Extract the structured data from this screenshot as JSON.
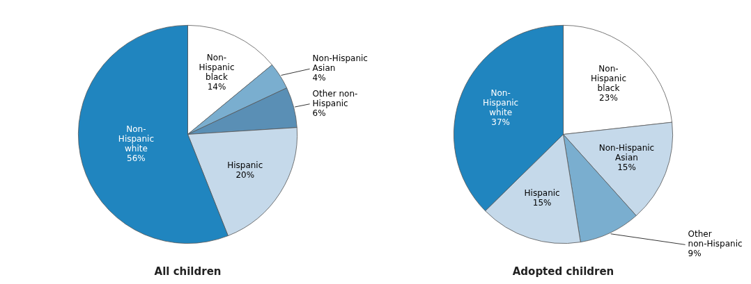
{
  "chart_data": [
    {
      "type": "pie",
      "title": "All children",
      "categories": [
        "Non-\nHispanic\nblack",
        "Non-Hispanic\nAsian",
        "Other non-\nHispanic",
        "Hispanic",
        "Non-\nHispanic\nwhite"
      ],
      "values": [
        14,
        4,
        6,
        20,
        56
      ],
      "value_labels": [
        "14%",
        "4%",
        "6%",
        "20%",
        "56%"
      ],
      "colors": [
        "#ffffff",
        "#7aaecf",
        "#5a8fb5",
        "#c5d9ea",
        "#2085bf"
      ],
      "data_labels": true
    },
    {
      "type": "pie",
      "title": "Adopted children",
      "categories": [
        "Non-\nHispanic\nblack",
        "Non-Hispanic\nAsian",
        "Other\nnon-Hispanic",
        "Hispanic",
        "Non-\nHispanic\nwhite"
      ],
      "values": [
        23,
        15,
        9,
        15,
        37
      ],
      "value_labels": [
        "23%",
        "15%",
        "9%",
        "15%",
        "37%"
      ],
      "colors": [
        "#ffffff",
        "#c5d9ea",
        "#7aaecf",
        "#c5d9ea",
        "#2085bf"
      ],
      "data_labels": true
    }
  ]
}
